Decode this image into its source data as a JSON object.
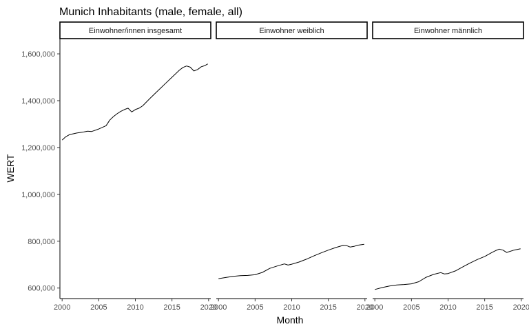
{
  "chart_data": {
    "type": "line",
    "title": "Munich Inhabitants (male, female, all)",
    "xlabel": "Month",
    "ylabel": "WERT",
    "xlim": [
      1999.7,
      2020.3
    ],
    "ylim": [
      555000,
      1665000
    ],
    "x_ticks": [
      2000,
      2005,
      2010,
      2015,
      2020
    ],
    "x_tick_labels": [
      "2000",
      "2005",
      "2010",
      "2015",
      "2020"
    ],
    "y_ticks": [
      600000,
      800000,
      1000000,
      1200000,
      1400000,
      1600000
    ],
    "y_tick_labels": [
      "600,000",
      "800,000",
      "1,000,000",
      "1,200,000",
      "1,400,000",
      "1,600,000"
    ],
    "grid": false,
    "panels": [
      {
        "strip": "Einwohner/innen insgesamt",
        "x": [
          2000,
          2000.5,
          2001,
          2002,
          2003,
          2003.5,
          2004,
          2005,
          2006,
          2006.5,
          2007,
          2007.5,
          2008,
          2008.5,
          2009,
          2009.5,
          2010,
          2010.5,
          2011,
          2012,
          2013,
          2014,
          2015,
          2016,
          2016.5,
          2017,
          2017.5,
          2018,
          2018.5,
          2019,
          2019.5,
          2019.9
        ],
        "values": [
          1232000,
          1246000,
          1255000,
          1262000,
          1267000,
          1270000,
          1268000,
          1279000,
          1293000,
          1317000,
          1332000,
          1344000,
          1354000,
          1362000,
          1368000,
          1352000,
          1362000,
          1368000,
          1378000,
          1410000,
          1440000,
          1470000,
          1500000,
          1530000,
          1542000,
          1548000,
          1543000,
          1527000,
          1533000,
          1545000,
          1550000,
          1557000
        ]
      },
      {
        "strip": "Einwohner weiblich",
        "x": [
          2000,
          2001,
          2002,
          2003,
          2004,
          2005,
          2006,
          2007,
          2008,
          2009,
          2009.5,
          2010,
          2011,
          2012,
          2013,
          2014,
          2015,
          2016,
          2017,
          2017.5,
          2018,
          2018.5,
          2019,
          2019.9
        ],
        "values": [
          640000,
          645000,
          650000,
          653000,
          654000,
          657000,
          667000,
          684000,
          694000,
          703000,
          698000,
          702000,
          711000,
          723000,
          737000,
          750000,
          762000,
          773000,
          782000,
          781000,
          775000,
          778000,
          783000,
          787000
        ]
      },
      {
        "strip": "Einwohner männlich",
        "x": [
          2000,
          2001,
          2002,
          2003,
          2004,
          2005,
          2006,
          2007,
          2008,
          2009,
          2009.5,
          2010,
          2011,
          2012,
          2013,
          2014,
          2015,
          2016,
          2016.5,
          2017,
          2017.5,
          2018,
          2019,
          2019.9
        ],
        "values": [
          594000,
          602000,
          609000,
          613000,
          615000,
          618000,
          627000,
          646000,
          658000,
          666000,
          660000,
          662000,
          673000,
          690000,
          707000,
          722000,
          735000,
          752000,
          760000,
          766000,
          762000,
          752000,
          762000,
          768000
        ]
      }
    ]
  }
}
